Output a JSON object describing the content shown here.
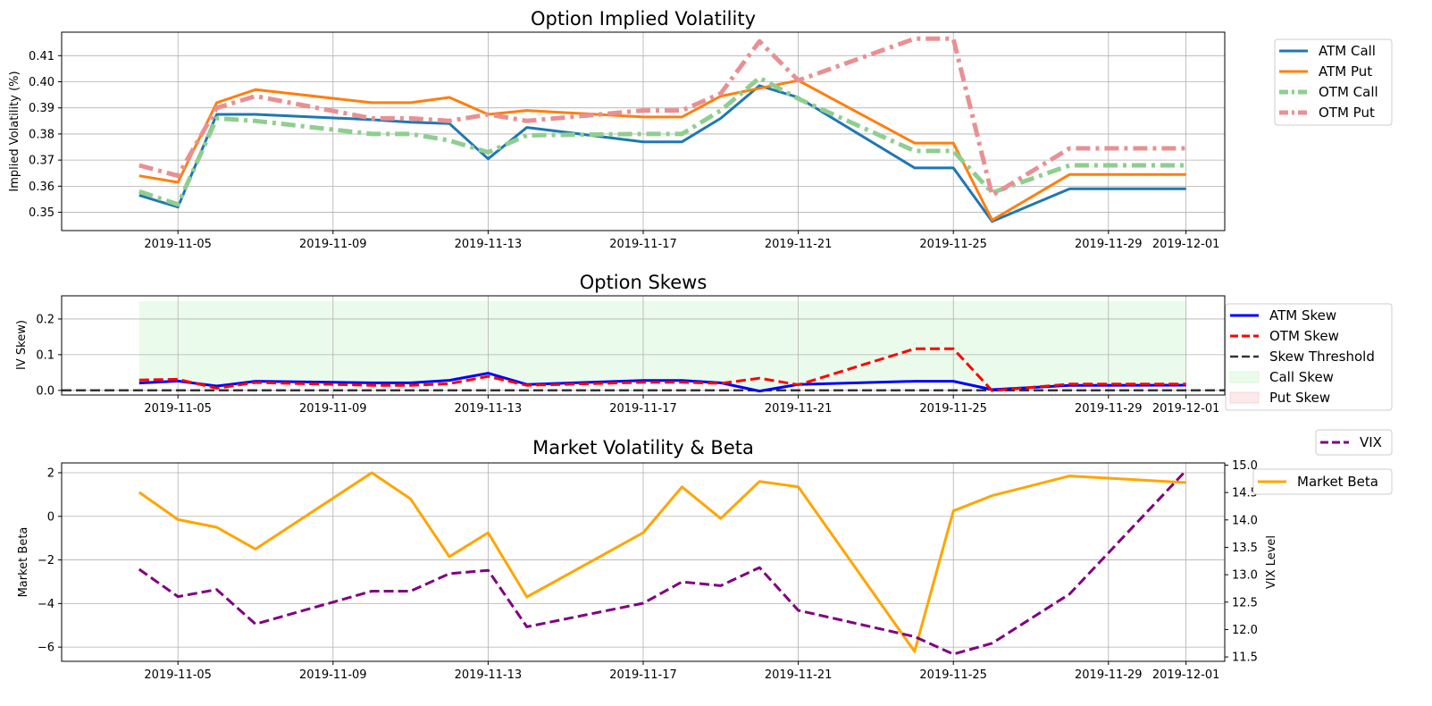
{
  "chart_data": [
    {
      "type": "line",
      "title": "Option Implied Volatility",
      "xlabel": "",
      "ylabel": "Implied Volatility (%)",
      "x_ticks": [
        "2019-11-05",
        "2019-11-09",
        "2019-11-13",
        "2019-11-17",
        "2019-11-21",
        "2019-11-25",
        "2019-11-29",
        "2019-12-01"
      ],
      "y_ticks": [
        "0.35",
        "0.36",
        "0.37",
        "0.38",
        "0.39",
        "0.40",
        "0.41"
      ],
      "ylim": [
        0.343,
        0.419
      ],
      "xlim": [
        "2019-11-02",
        "2019-12-02"
      ],
      "grid": true,
      "legend_position": "outside-right",
      "series": [
        {
          "name": "ATM Call",
          "color": "#1f77b4",
          "dash": "solid",
          "width": 3,
          "opacity": 1,
          "points": [
            [
              "2019-11-04",
              0.3565
            ],
            [
              "2019-11-05",
              0.352
            ],
            [
              "2019-11-06",
              0.3875
            ],
            [
              "2019-11-07",
              0.3875
            ],
            [
              "2019-11-10",
              0.3855
            ],
            [
              "2019-11-11",
              0.3845
            ],
            [
              "2019-11-12",
              0.384
            ],
            [
              "2019-11-13",
              0.3705
            ],
            [
              "2019-11-14",
              0.3825
            ],
            [
              "2019-11-17",
              0.377
            ],
            [
              "2019-11-18",
              0.377
            ],
            [
              "2019-11-19",
              0.386
            ],
            [
              "2019-11-20",
              0.3985
            ],
            [
              "2019-11-21",
              0.394
            ],
            [
              "2019-11-24",
              0.367
            ],
            [
              "2019-11-25",
              0.367
            ],
            [
              "2019-11-26",
              0.3465
            ],
            [
              "2019-11-28",
              0.359
            ],
            [
              "2019-12-01",
              0.359
            ]
          ]
        },
        {
          "name": "ATM Put",
          "color": "#ff7f0e",
          "dash": "solid",
          "width": 3,
          "opacity": 1,
          "points": [
            [
              "2019-11-04",
              0.364
            ],
            [
              "2019-11-05",
              0.3615
            ],
            [
              "2019-11-06",
              0.392
            ],
            [
              "2019-11-07",
              0.397
            ],
            [
              "2019-11-10",
              0.392
            ],
            [
              "2019-11-11",
              0.392
            ],
            [
              "2019-11-12",
              0.394
            ],
            [
              "2019-11-13",
              0.3875
            ],
            [
              "2019-11-14",
              0.389
            ],
            [
              "2019-11-17",
              0.3865
            ],
            [
              "2019-11-18",
              0.3865
            ],
            [
              "2019-11-19",
              0.3945
            ],
            [
              "2019-11-20",
              0.3975
            ],
            [
              "2019-11-21",
              0.4005
            ],
            [
              "2019-11-24",
              0.3765
            ],
            [
              "2019-11-25",
              0.3765
            ],
            [
              "2019-11-26",
              0.347
            ],
            [
              "2019-11-28",
              0.3645
            ],
            [
              "2019-12-01",
              0.3645
            ]
          ]
        },
        {
          "name": "OTM Call",
          "color": "#8fce8f",
          "dash": "dashdot",
          "width": 5,
          "opacity": 1,
          "points": [
            [
              "2019-11-04",
              0.358
            ],
            [
              "2019-11-05",
              0.353
            ],
            [
              "2019-11-06",
              0.386
            ],
            [
              "2019-11-07",
              0.385
            ],
            [
              "2019-11-10",
              0.38
            ],
            [
              "2019-11-11",
              0.38
            ],
            [
              "2019-11-12",
              0.3775
            ],
            [
              "2019-11-13",
              0.373
            ],
            [
              "2019-11-14",
              0.3795
            ],
            [
              "2019-11-17",
              0.38
            ],
            [
              "2019-11-18",
              0.38
            ],
            [
              "2019-11-19",
              0.389
            ],
            [
              "2019-11-20",
              0.4015
            ],
            [
              "2019-11-21",
              0.3935
            ],
            [
              "2019-11-24",
              0.3735
            ],
            [
              "2019-11-25",
              0.3735
            ],
            [
              "2019-11-26",
              0.3575
            ],
            [
              "2019-11-28",
              0.368
            ],
            [
              "2019-12-01",
              0.368
            ]
          ]
        },
        {
          "name": "OTM Put",
          "color": "#e89092",
          "dash": "dashdot",
          "width": 5,
          "opacity": 1,
          "points": [
            [
              "2019-11-04",
              0.368
            ],
            [
              "2019-11-05",
              0.364
            ],
            [
              "2019-11-06",
              0.39
            ],
            [
              "2019-11-07",
              0.3945
            ],
            [
              "2019-11-10",
              0.386
            ],
            [
              "2019-11-11",
              0.386
            ],
            [
              "2019-11-12",
              0.385
            ],
            [
              "2019-11-13",
              0.3875
            ],
            [
              "2019-11-14",
              0.385
            ],
            [
              "2019-11-17",
              0.389
            ],
            [
              "2019-11-18",
              0.389
            ],
            [
              "2019-11-19",
              0.3955
            ],
            [
              "2019-11-20",
              0.4155
            ],
            [
              "2019-11-21",
              0.4005
            ],
            [
              "2019-11-24",
              0.4165
            ],
            [
              "2019-11-25",
              0.4165
            ],
            [
              "2019-11-26",
              0.3565
            ],
            [
              "2019-11-28",
              0.3745
            ],
            [
              "2019-12-01",
              0.3745
            ]
          ]
        }
      ]
    },
    {
      "type": "line",
      "title": "Option Skews",
      "xlabel": "",
      "ylabel": "IV Skew)",
      "x_ticks": [
        "2019-11-05",
        "2019-11-09",
        "2019-11-13",
        "2019-11-17",
        "2019-11-21",
        "2019-11-25",
        "2019-11-29",
        "2019-12-01"
      ],
      "y_ticks": [
        "0.0",
        "0.1",
        "0.2"
      ],
      "ylim": [
        -0.013,
        0.265
      ],
      "xlim": [
        "2019-11-02",
        "2019-12-02"
      ],
      "grid": true,
      "legend_position": "outside-right",
      "fills": [
        {
          "name": "Call Skew",
          "color": "#ccf5cc",
          "opacity": 0.4,
          "from": "2019-11-04",
          "to": "2019-12-01",
          "y0_series": "ATM Skew",
          "y1": 0.25
        },
        {
          "name": "Put Skew",
          "color": "#f7c8c8",
          "opacity": 0.4,
          "from": null,
          "to": null,
          "y0_series": null,
          "y1": null
        }
      ],
      "threshold": {
        "name": "Skew Threshold",
        "value": 0.0,
        "color": "#333333"
      },
      "series": [
        {
          "name": "ATM Skew",
          "color": "#0000ff",
          "dash": "solid",
          "width": 3,
          "opacity": 1,
          "points": [
            [
              "2019-11-04",
              0.0205
            ],
            [
              "2019-11-05",
              0.026
            ],
            [
              "2019-11-06",
              0.012
            ],
            [
              "2019-11-07",
              0.0255
            ],
            [
              "2019-11-10",
              0.021
            ],
            [
              "2019-11-11",
              0.021
            ],
            [
              "2019-11-12",
              0.028
            ],
            [
              "2019-11-13",
              0.048
            ],
            [
              "2019-11-14",
              0.0165
            ],
            [
              "2019-11-17",
              0.0275
            ],
            [
              "2019-11-18",
              0.0275
            ],
            [
              "2019-11-19",
              0.021
            ],
            [
              "2019-11-20",
              -0.002
            ],
            [
              "2019-11-21",
              0.0165
            ],
            [
              "2019-11-24",
              0.0255
            ],
            [
              "2019-11-25",
              0.0255
            ],
            [
              "2019-11-26",
              0.002
            ],
            [
              "2019-11-28",
              0.014
            ],
            [
              "2019-12-01",
              0.0145
            ]
          ]
        },
        {
          "name": "OTM Skew",
          "color": "#ff0000",
          "dash": "dashed",
          "width": 3,
          "opacity": 1,
          "points": [
            [
              "2019-11-04",
              0.029
            ],
            [
              "2019-11-05",
              0.031
            ],
            [
              "2019-11-06",
              0.006
            ],
            [
              "2019-11-07",
              0.022
            ],
            [
              "2019-11-10",
              0.014
            ],
            [
              "2019-11-11",
              0.014
            ],
            [
              "2019-11-12",
              0.0185
            ],
            [
              "2019-11-13",
              0.039
            ],
            [
              "2019-11-14",
              0.014
            ],
            [
              "2019-11-17",
              0.0225
            ],
            [
              "2019-11-18",
              0.0225
            ],
            [
              "2019-11-19",
              0.0195
            ],
            [
              "2019-11-20",
              0.034
            ],
            [
              "2019-11-21",
              0.0155
            ],
            [
              "2019-11-24",
              0.1165
            ],
            [
              "2019-11-25",
              0.1165
            ],
            [
              "2019-11-26",
              -0.001
            ],
            [
              "2019-11-28",
              0.0175
            ],
            [
              "2019-12-01",
              0.0175
            ]
          ]
        }
      ]
    },
    {
      "type": "line",
      "title": "Market Volatility & Beta",
      "xlabel": "",
      "ylabel": "Market Beta",
      "ylabel_right": "VIX Level",
      "x_ticks": [
        "2019-11-05",
        "2019-11-09",
        "2019-11-13",
        "2019-11-17",
        "2019-11-21",
        "2019-11-25",
        "2019-11-29",
        "2019-12-01"
      ],
      "y_ticks": [
        "−6",
        "−4",
        "−2",
        "0",
        "2"
      ],
      "y_ticks_right": [
        "11.5",
        "12.0",
        "12.5",
        "13.0",
        "13.5",
        "14.0",
        "14.5",
        "15.0"
      ],
      "ylim": [
        -6.65,
        2.45
      ],
      "ylim_right": [
        11.42,
        15.04
      ],
      "xlim": [
        "2019-11-02",
        "2019-12-02"
      ],
      "grid": true,
      "legend_position": "outside-right",
      "series": [
        {
          "name": "Market Beta",
          "axis": "left",
          "color": "#ffa500",
          "dash": "solid",
          "width": 3,
          "opacity": 1,
          "points": [
            [
              "2019-11-04",
              1.1
            ],
            [
              "2019-11-05",
              -0.15
            ],
            [
              "2019-11-06",
              -0.5
            ],
            [
              "2019-11-07",
              -1.5
            ],
            [
              "2019-11-10",
              2.0
            ],
            [
              "2019-11-11",
              0.8
            ],
            [
              "2019-11-12",
              -1.85
            ],
            [
              "2019-11-13",
              -0.75
            ],
            [
              "2019-11-14",
              -3.7
            ],
            [
              "2019-11-17",
              -0.75
            ],
            [
              "2019-11-18",
              1.35
            ],
            [
              "2019-11-19",
              -0.1
            ],
            [
              "2019-11-20",
              1.6
            ],
            [
              "2019-11-21",
              1.35
            ],
            [
              "2019-11-24",
              -6.2
            ],
            [
              "2019-11-25",
              0.25
            ],
            [
              "2019-11-26",
              0.95
            ],
            [
              "2019-11-28",
              1.85
            ],
            [
              "2019-12-01",
              1.55
            ]
          ]
        },
        {
          "name": "VIX",
          "axis": "right",
          "color": "#800080",
          "dash": "dashed",
          "width": 3,
          "opacity": 1,
          "points": [
            [
              "2019-11-04",
              13.1
            ],
            [
              "2019-11-05",
              12.6
            ],
            [
              "2019-11-06",
              12.73
            ],
            [
              "2019-11-07",
              12.1
            ],
            [
              "2019-11-10",
              12.7
            ],
            [
              "2019-11-11",
              12.7
            ],
            [
              "2019-11-12",
              13.02
            ],
            [
              "2019-11-13",
              13.08
            ],
            [
              "2019-11-14",
              12.05
            ],
            [
              "2019-11-17",
              12.48
            ],
            [
              "2019-11-18",
              12.87
            ],
            [
              "2019-11-19",
              12.8
            ],
            [
              "2019-11-20",
              13.13
            ],
            [
              "2019-11-21",
              12.35
            ],
            [
              "2019-11-24",
              11.87
            ],
            [
              "2019-11-25",
              11.55
            ],
            [
              "2019-11-26",
              11.75
            ],
            [
              "2019-11-28",
              12.65
            ],
            [
              "2019-12-01",
              14.9
            ]
          ]
        }
      ]
    }
  ]
}
